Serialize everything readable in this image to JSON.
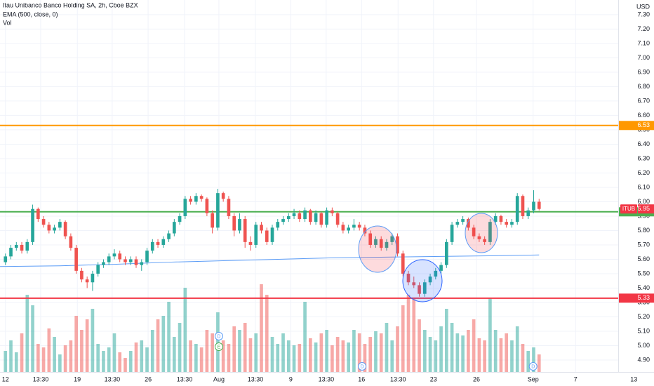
{
  "chart_data": {
    "type": "candlestick",
    "title": "Itau Unibanco Banco Holding SA, 2h, Cboe BZX",
    "indicator_label": "EMA (500, close, 0)",
    "volume_label": "Vol",
    "currency": "USD",
    "up_color": "#26a69a",
    "down_color": "#ef5350",
    "grid": true,
    "xlim": [
      -1,
      119.1
    ],
    "ylim": [
      4.817,
      7.402
    ],
    "xticks": [
      {
        "value": 0,
        "label": "12"
      },
      {
        "value": 6.47,
        "label": "13:30"
      },
      {
        "value": 13.2,
        "label": "19"
      },
      {
        "value": 19.6,
        "label": "13:30"
      },
      {
        "value": 26.2,
        "label": "26"
      },
      {
        "value": 32.9,
        "label": "13:30"
      },
      {
        "value": 39.2,
        "label": "Aug"
      },
      {
        "value": 45.9,
        "label": "13:30"
      },
      {
        "value": 52.4,
        "label": "9"
      },
      {
        "value": 58.9,
        "label": "13:30"
      },
      {
        "value": 65.4,
        "label": "16"
      },
      {
        "value": 72.1,
        "label": "13:30"
      },
      {
        "value": 78.6,
        "label": "23"
      },
      {
        "value": 86.5,
        "label": "26"
      },
      {
        "value": 96.9,
        "label": "Sep"
      },
      {
        "value": 104.7,
        "label": "7"
      },
      {
        "value": 115.4,
        "label": "13"
      }
    ],
    "yticks": [
      {
        "value": 4.9,
        "label": "4.90"
      },
      {
        "value": 5,
        "label": "5.00"
      },
      {
        "value": 5.1,
        "label": "5.10"
      },
      {
        "value": 5.2,
        "label": "5.20"
      },
      {
        "value": 5.3,
        "label": "5.30"
      },
      {
        "value": 5.4,
        "label": "5.40"
      },
      {
        "value": 5.5,
        "label": "5.50"
      },
      {
        "value": 5.6,
        "label": "5.60"
      },
      {
        "value": 5.7,
        "label": "5.70"
      },
      {
        "value": 5.8,
        "label": "5.80"
      },
      {
        "value": 5.9,
        "label": "5.90"
      },
      {
        "value": 6,
        "label": "6.00"
      },
      {
        "value": 6.1,
        "label": "6.10"
      },
      {
        "value": 6.2,
        "label": "6.20"
      },
      {
        "value": 6.3,
        "label": "6.30"
      },
      {
        "value": 6.4,
        "label": "6.40"
      },
      {
        "value": 6.5,
        "label": "6.50"
      },
      {
        "value": 6.6,
        "label": "6.60"
      },
      {
        "value": 6.7,
        "label": "6.70"
      },
      {
        "value": 6.8,
        "label": "6.80"
      },
      {
        "value": 6.9,
        "label": "6.90"
      },
      {
        "value": 7,
        "label": "7.00"
      },
      {
        "value": 7.1,
        "label": "7.10"
      },
      {
        "value": 7.2,
        "label": "7.20"
      },
      {
        "value": 7.3,
        "label": "7.30"
      }
    ],
    "open": [
      5.58,
      5.62,
      5.68,
      5.7,
      5.66,
      5.72,
      5.95,
      5.88,
      5.84,
      5.8,
      5.82,
      5.86,
      5.76,
      5.68,
      5.52,
      5.46,
      5.44,
      5.5,
      5.56,
      5.58,
      5.62,
      5.64,
      5.6,
      5.58,
      5.6,
      5.56,
      5.58,
      5.66,
      5.72,
      5.7,
      5.74,
      5.78,
      5.86,
      5.9,
      6.02,
      6.0,
      6.04,
      6.02,
      5.92,
      5.82,
      6.06,
      6.02,
      5.9,
      5.8,
      5.88,
      5.72,
      5.7,
      5.84,
      5.8,
      5.72,
      5.82,
      5.86,
      5.88,
      5.9,
      5.92,
      5.88,
      5.94,
      5.86,
      5.92,
      5.84,
      5.94,
      5.92,
      5.84,
      5.8,
      5.82,
      5.84,
      5.82,
      5.78,
      5.7,
      5.74,
      5.68,
      5.72,
      5.76,
      5.64,
      5.5,
      5.44,
      5.42,
      5.36,
      5.44,
      5.48,
      5.52,
      5.56,
      5.72,
      5.84,
      5.86,
      5.88,
      5.82,
      5.76,
      5.74,
      5.72,
      5.86,
      5.9,
      5.86,
      5.84,
      5.86,
      6.04,
      5.9,
      5.94,
      6.0
    ],
    "high": [
      5.64,
      5.7,
      5.72,
      5.72,
      5.74,
      5.98,
      5.96,
      5.9,
      5.86,
      5.84,
      5.88,
      5.87,
      5.78,
      5.7,
      5.54,
      5.48,
      5.52,
      5.58,
      5.6,
      5.64,
      5.67,
      5.66,
      5.62,
      5.62,
      5.62,
      5.6,
      5.68,
      5.74,
      5.74,
      5.76,
      5.8,
      5.88,
      5.92,
      6.04,
      6.04,
      6.06,
      6.05,
      6.03,
      5.94,
      6.09,
      6.07,
      6.04,
      5.92,
      5.92,
      5.9,
      5.76,
      5.86,
      5.86,
      5.82,
      5.84,
      5.88,
      5.9,
      5.92,
      5.95,
      5.94,
      5.96,
      5.95,
      5.94,
      5.93,
      5.96,
      5.96,
      5.93,
      5.86,
      5.84,
      5.88,
      5.86,
      5.84,
      5.8,
      5.76,
      5.76,
      5.74,
      5.78,
      5.78,
      5.66,
      5.52,
      5.48,
      5.44,
      5.46,
      5.5,
      5.54,
      5.58,
      5.74,
      5.86,
      5.88,
      5.9,
      5.89,
      5.84,
      5.78,
      5.76,
      5.88,
      5.92,
      5.91,
      5.88,
      5.88,
      6.06,
      6.05,
      5.96,
      6.08,
      6.02
    ],
    "low": [
      5.56,
      5.6,
      5.66,
      5.64,
      5.64,
      5.7,
      5.86,
      5.82,
      5.78,
      5.78,
      5.8,
      5.74,
      5.66,
      5.5,
      5.44,
      5.4,
      5.38,
      5.48,
      5.54,
      5.56,
      5.6,
      5.58,
      5.56,
      5.56,
      5.54,
      5.52,
      5.56,
      5.64,
      5.68,
      5.68,
      5.72,
      5.76,
      5.84,
      5.88,
      5.98,
      5.98,
      6.0,
      5.9,
      5.78,
      5.8,
      6.0,
      5.88,
      5.76,
      5.78,
      5.68,
      5.66,
      5.68,
      5.78,
      5.7,
      5.7,
      5.8,
      5.84,
      5.86,
      5.88,
      5.86,
      5.86,
      5.84,
      5.84,
      5.82,
      5.82,
      5.9,
      5.82,
      5.78,
      5.78,
      5.8,
      5.8,
      5.76,
      5.68,
      5.68,
      5.66,
      5.66,
      5.7,
      5.62,
      5.48,
      5.42,
      5.4,
      5.34,
      5.34,
      5.42,
      5.46,
      5.5,
      5.54,
      5.7,
      5.82,
      5.84,
      5.8,
      5.74,
      5.72,
      5.7,
      5.7,
      5.84,
      5.84,
      5.82,
      5.82,
      5.84,
      5.88,
      5.88,
      5.92,
      5.94
    ],
    "close": [
      5.62,
      5.68,
      5.7,
      5.66,
      5.72,
      5.95,
      5.88,
      5.84,
      5.8,
      5.82,
      5.86,
      5.76,
      5.68,
      5.52,
      5.46,
      5.44,
      5.5,
      5.56,
      5.58,
      5.62,
      5.64,
      5.6,
      5.58,
      5.6,
      5.56,
      5.58,
      5.66,
      5.72,
      5.7,
      5.74,
      5.78,
      5.86,
      5.9,
      6.02,
      6.0,
      6.04,
      6.02,
      5.92,
      5.82,
      6.06,
      6.02,
      5.9,
      5.8,
      5.88,
      5.72,
      5.7,
      5.84,
      5.8,
      5.72,
      5.82,
      5.86,
      5.88,
      5.9,
      5.92,
      5.88,
      5.94,
      5.86,
      5.92,
      5.84,
      5.94,
      5.92,
      5.84,
      5.8,
      5.82,
      5.84,
      5.82,
      5.78,
      5.7,
      5.74,
      5.68,
      5.72,
      5.76,
      5.64,
      5.5,
      5.44,
      5.42,
      5.36,
      5.44,
      5.48,
      5.52,
      5.56,
      5.72,
      5.84,
      5.86,
      5.88,
      5.82,
      5.76,
      5.74,
      5.72,
      5.86,
      5.9,
      5.86,
      5.84,
      5.86,
      6.04,
      5.9,
      5.94,
      6.0,
      5.95
    ],
    "volume": [
      30,
      45,
      28,
      55,
      110,
      95,
      40,
      35,
      62,
      50,
      25,
      38,
      45,
      80,
      60,
      75,
      90,
      40,
      30,
      35,
      55,
      28,
      20,
      30,
      42,
      45,
      35,
      60,
      75,
      80,
      100,
      50,
      70,
      120,
      45,
      40,
      35,
      60,
      55,
      85,
      45,
      40,
      65,
      60,
      70,
      48,
      55,
      125,
      110,
      50,
      40,
      55,
      45,
      38,
      40,
      100,
      48,
      42,
      55,
      60,
      38,
      50,
      45,
      42,
      60,
      55,
      40,
      50,
      58,
      55,
      70,
      45,
      65,
      95,
      110,
      105,
      75,
      60,
      50,
      45,
      65,
      90,
      70,
      55,
      52,
      60,
      75,
      48,
      45,
      105,
      60,
      48,
      55,
      45,
      65,
      40,
      30,
      35,
      25
    ],
    "ema": {
      "color": "#5b9cf6",
      "x": [
        -1,
        10,
        20,
        30,
        40,
        50,
        60,
        70,
        80,
        90,
        98
      ],
      "values": [
        5.55,
        5.555,
        5.565,
        5.58,
        5.59,
        5.6,
        5.61,
        5.615,
        5.62,
        5.625,
        5.63
      ]
    },
    "levels": [
      {
        "value": 6.53,
        "color": "#ff9800"
      },
      {
        "value": 5.93,
        "color": "#4caf50"
      },
      {
        "value": 5.33,
        "color": "#f23645"
      }
    ],
    "last_price": {
      "symbol": "ITUB",
      "value": 5.95,
      "color": "#f23645"
    },
    "events": [
      {
        "label": "D",
        "x": 39.2,
        "color": "#5b9cf6"
      },
      {
        "label": "E",
        "x": 39.2,
        "color": "#4caf50"
      },
      {
        "label": "D",
        "x": 65.5,
        "color": "#5b9cf6"
      },
      {
        "label": "D",
        "x": 96.9,
        "color": "#5b9cf6"
      }
    ]
  }
}
